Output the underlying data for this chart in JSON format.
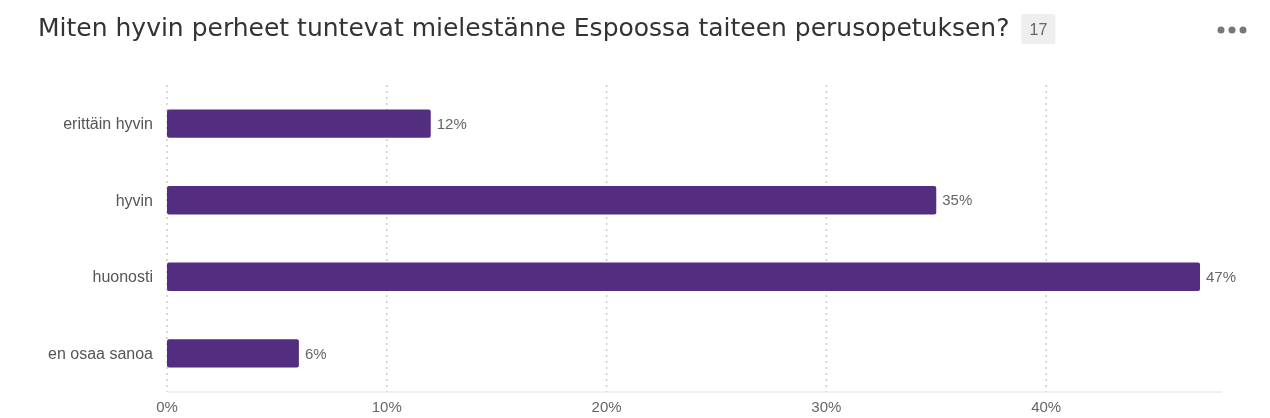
{
  "chart_data": {
    "type": "bar",
    "orientation": "horizontal",
    "title": "Miten hyvin perheet tuntevat mielestänne Espoossa taiteen perusopetuksen?",
    "annotations": [
      "17"
    ],
    "categories": [
      "erittäin hyvin",
      "hyvin",
      "huonosti",
      "en osaa sanoa"
    ],
    "values": [
      12,
      35,
      47,
      6
    ],
    "value_labels": [
      "12%",
      "35%",
      "47%",
      "6%"
    ],
    "color": "#522d80",
    "xlim": [
      0,
      48
    ],
    "xticks": [
      {
        "value": 0,
        "label": "0%"
      },
      {
        "value": 10,
        "label": "10%"
      },
      {
        "value": 20,
        "label": "20%"
      },
      {
        "value": 30,
        "label": "30%"
      },
      {
        "value": 40,
        "label": "40%"
      }
    ],
    "grid": "x"
  }
}
